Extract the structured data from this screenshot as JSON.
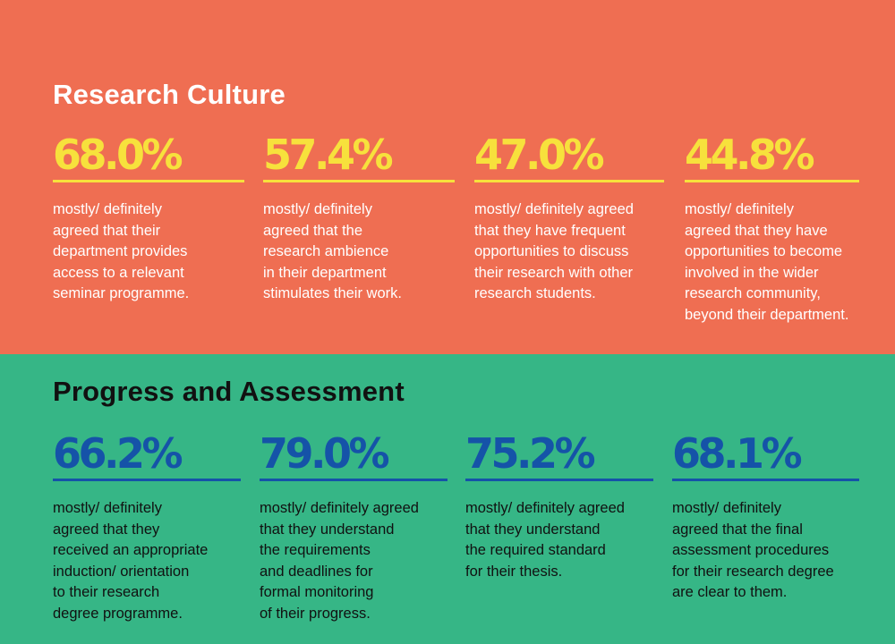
{
  "theme": {
    "culture_bg": "#EF6E52",
    "culture_accent": "#F7E13C",
    "progress_bg": "#36B686",
    "progress_accent": "#1553A8",
    "text_light": "#FFFFFF",
    "text_dark": "#111111"
  },
  "research_culture": {
    "title": "Research Culture",
    "stats": [
      {
        "value": "68.0%",
        "text": "mostly/ definitely\nagreed that their\ndepartment provides\naccess to a relevant\nseminar programme."
      },
      {
        "value": "57.4%",
        "text": "mostly/ definitely\nagreed that the\nresearch ambience\nin their department\nstimulates their work."
      },
      {
        "value": "47.0%",
        "text": "mostly/ definitely agreed\nthat they have frequent\nopportunities to discuss\ntheir research with other\nresearch students."
      },
      {
        "value": "44.8%",
        "text": "mostly/ definitely\nagreed that they have\nopportunities to become\ninvolved in the wider\nresearch community,\nbeyond their department."
      }
    ]
  },
  "progress_assessment": {
    "title": "Progress and Assessment",
    "stats": [
      {
        "value": "66.2%",
        "text": "mostly/ definitely\nagreed that they\nreceived an appropriate\ninduction/ orientation\nto their research\ndegree programme."
      },
      {
        "value": "79.0%",
        "text": "mostly/ definitely agreed\nthat they understand\nthe requirements\nand deadlines for\nformal monitoring\nof their progress."
      },
      {
        "value": "75.2%",
        "text": "mostly/ definitely agreed\nthat they understand\nthe required standard\nfor their thesis."
      },
      {
        "value": "68.1%",
        "text": "mostly/ definitely\nagreed that the final\nassessment procedures\nfor their research degree\nare clear to them."
      }
    ]
  }
}
